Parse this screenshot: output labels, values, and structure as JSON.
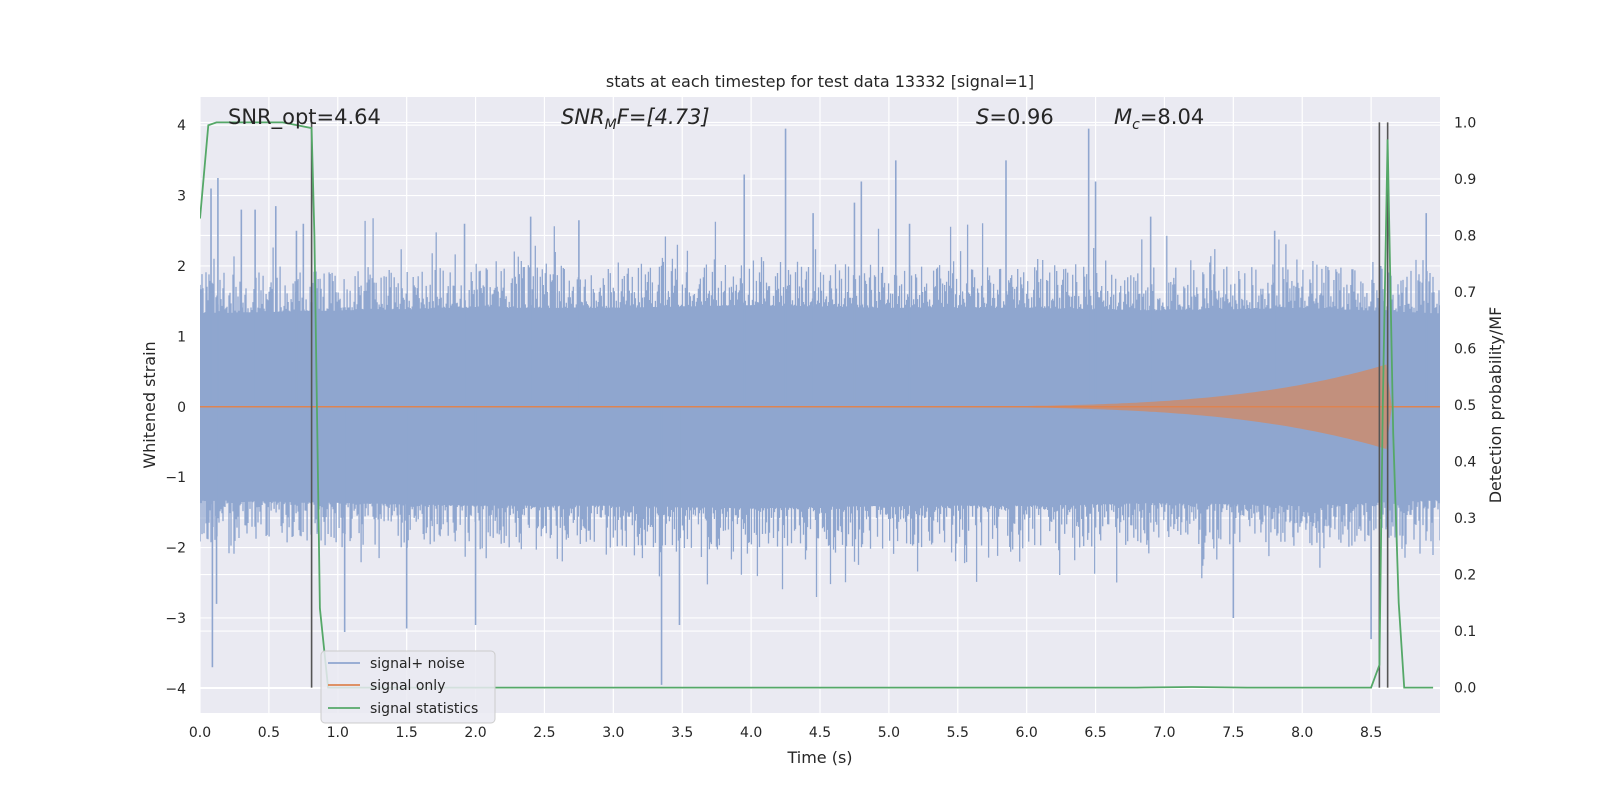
{
  "chart_data": {
    "type": "line",
    "title": "stats at each timestep for test data 13332 [signal=1]",
    "xlabel": "Time (s)",
    "ylabel": "Whitened strain",
    "y2label": "Detection probability/MF",
    "xlim": [
      0,
      9.0
    ],
    "ylim": [
      -4.35,
      4.4
    ],
    "y2lim": [
      -0.045,
      1.045
    ],
    "x_ticks": [
      "0.0",
      "0.5",
      "1.0",
      "1.5",
      "2.0",
      "2.5",
      "3.0",
      "3.5",
      "4.0",
      "4.5",
      "5.0",
      "5.5",
      "6.0",
      "6.5",
      "7.0",
      "7.5",
      "8.0",
      "8.5"
    ],
    "y_ticks": [
      "−4",
      "−3",
      "−2",
      "−1",
      "0",
      "1",
      "2",
      "3",
      "4"
    ],
    "y2_ticks": [
      "0.0",
      "0.1",
      "0.2",
      "0.3",
      "0.4",
      "0.5",
      "0.6",
      "0.7",
      "0.8",
      "0.9",
      "1.0"
    ],
    "grid": true,
    "legend_position": "lower-left",
    "annotations": {
      "snr_opt": "SNR_opt=4.64",
      "snr_mf_base": "SNR",
      "snr_mf_sub": "M",
      "snr_mf_rest": "F=[4.73]",
      "s_base": "S",
      "s_rest": "=0.96",
      "mc_base": "M",
      "mc_sub": "c",
      "mc_rest": "=8.04"
    },
    "vertical_lines_x": [
      0.81,
      8.56,
      8.62
    ],
    "series": [
      {
        "name": "signal+ noise",
        "color": "#8fa6cf",
        "x_range": [
          0,
          9.0
        ],
        "envelope_upper": [
          [
            0,
            1.7
          ],
          [
            1.0,
            1.75
          ],
          [
            2.0,
            1.8
          ],
          [
            3.0,
            1.8
          ],
          [
            4.0,
            1.85
          ],
          [
            5.0,
            1.8
          ],
          [
            6.0,
            1.8
          ],
          [
            7.0,
            1.75
          ],
          [
            8.0,
            1.8
          ],
          [
            9.0,
            1.7
          ]
        ],
        "envelope_lower": [
          [
            0,
            -1.7
          ],
          [
            1.0,
            -1.75
          ],
          [
            2.0,
            -1.8
          ],
          [
            3.0,
            -1.8
          ],
          [
            4.0,
            -1.85
          ],
          [
            5.0,
            -1.8
          ],
          [
            6.0,
            -1.8
          ],
          [
            7.0,
            -1.75
          ],
          [
            8.0,
            -1.8
          ],
          [
            9.0,
            -1.7
          ]
        ],
        "peaks": [
          [
            0.09,
            -3.7
          ],
          [
            0.12,
            -2.8
          ],
          [
            0.13,
            3.25
          ],
          [
            0.08,
            3.1
          ],
          [
            0.3,
            2.8
          ],
          [
            0.4,
            2.8
          ],
          [
            0.55,
            2.85
          ],
          [
            0.7,
            2.5
          ],
          [
            0.75,
            2.6
          ],
          [
            1.05,
            -3.2
          ],
          [
            1.5,
            -3.15
          ],
          [
            1.92,
            2.6
          ],
          [
            2.0,
            -3.1
          ],
          [
            2.4,
            2.7
          ],
          [
            2.75,
            2.65
          ],
          [
            3.35,
            -3.95
          ],
          [
            3.48,
            -3.1
          ],
          [
            4.25,
            3.95
          ],
          [
            3.95,
            3.3
          ],
          [
            4.45,
            2.75
          ],
          [
            4.75,
            2.9
          ],
          [
            4.8,
            3.2
          ],
          [
            5.05,
            3.5
          ],
          [
            5.15,
            2.6
          ],
          [
            5.85,
            3.5
          ],
          [
            6.45,
            3.95
          ],
          [
            6.5,
            3.2
          ],
          [
            6.9,
            2.7
          ],
          [
            7.5,
            -3.0
          ],
          [
            7.8,
            2.5
          ],
          [
            8.5,
            -3.3
          ],
          [
            8.57,
            2.0
          ],
          [
            8.9,
            2.75
          ]
        ]
      },
      {
        "name": "signal only",
        "color": "#dd8452",
        "chirp_start_x": 4.5,
        "chirp_peak_x": 8.61,
        "chirp_peak_amplitude": 0.6,
        "chirp_end_x": 8.65
      },
      {
        "name": "signal statistics",
        "color": "#55a868",
        "axis": "y2",
        "points": [
          [
            0.0,
            0.83
          ],
          [
            0.06,
            0.995
          ],
          [
            0.12,
            1.0
          ],
          [
            0.3,
            1.0
          ],
          [
            0.6,
            1.0
          ],
          [
            0.81,
            0.99
          ],
          [
            0.83,
            0.8
          ],
          [
            0.87,
            0.14
          ],
          [
            0.93,
            0.0
          ],
          [
            1.0,
            0.0
          ],
          [
            6.8,
            0.0
          ],
          [
            7.2,
            0.001
          ],
          [
            7.6,
            0.0
          ],
          [
            8.5,
            0.0
          ],
          [
            8.56,
            0.04
          ],
          [
            8.585,
            0.5
          ],
          [
            8.62,
            0.97
          ],
          [
            8.66,
            0.45
          ],
          [
            8.7,
            0.15
          ],
          [
            8.74,
            0.0
          ],
          [
            8.95,
            0.0
          ]
        ]
      }
    ]
  }
}
